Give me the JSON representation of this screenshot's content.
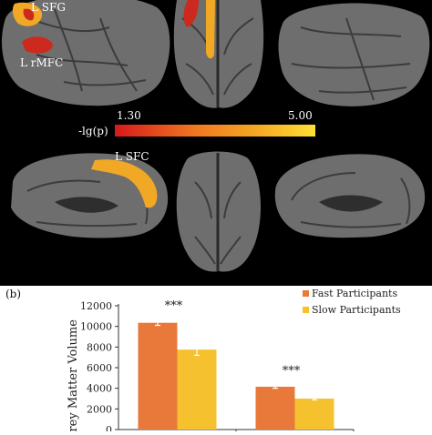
{
  "panel_a": {
    "labels": {
      "l_sfg": "L SFG",
      "l_rmfc": "L rMFC",
      "l_sfc": "L SFC"
    },
    "colorbar": {
      "title": "-lg(p)",
      "min_label": "1.30",
      "max_label": "5.00",
      "colors": [
        "#d7191c",
        "#f07820",
        "#f5a623",
        "#ffe033"
      ]
    },
    "colors": {
      "cortex": "#6e6e6e",
      "significant_dark": "#cc2a1f",
      "significant_light": "#f0a825"
    }
  },
  "panel_b": {
    "label": "(b)"
  },
  "chart_data": {
    "type": "bar",
    "categories": [
      "",
      ""
    ],
    "ylabel": "Grey Matter Volume",
    "xlabel": "",
    "ylim": [
      0,
      12000
    ],
    "yticks": [
      "0",
      "2000",
      "4000",
      "6000",
      "8000",
      "10000",
      "12000"
    ],
    "series": [
      {
        "name": "Fast Participants",
        "color": "#e8793a",
        "values": [
          10350,
          4150
        ],
        "errors": [
          250,
          150
        ]
      },
      {
        "name": "Slow Participants",
        "color": "#f5c12e",
        "values": [
          7750,
          3000
        ],
        "errors": [
          550,
          120
        ]
      }
    ],
    "annotations": [
      "***",
      "***"
    ],
    "legend_position": "top-right",
    "grid": false
  }
}
